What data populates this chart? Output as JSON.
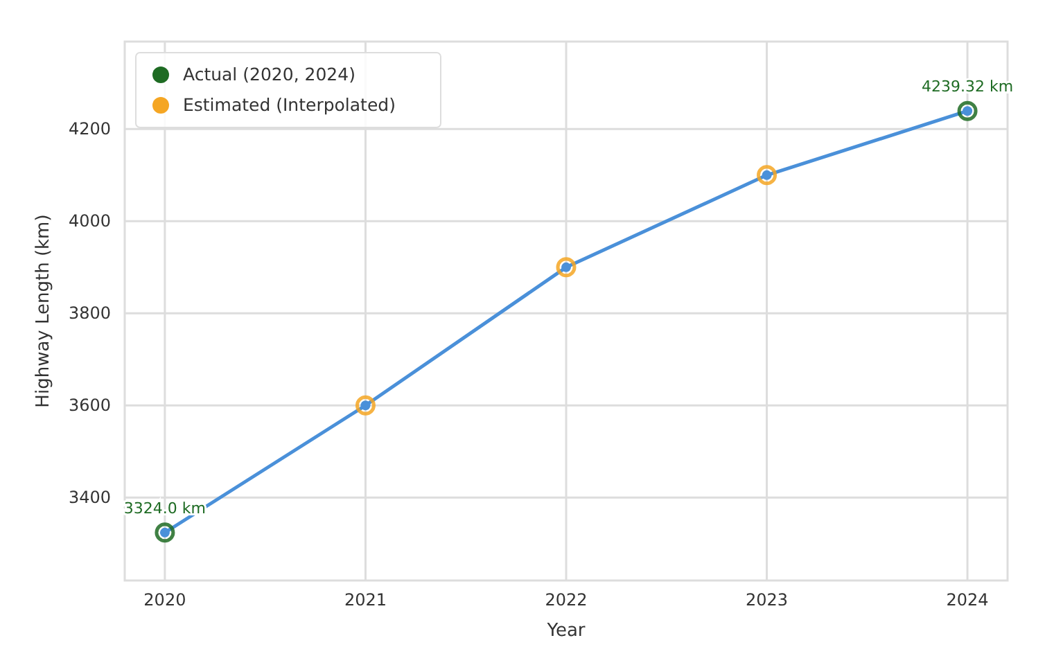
{
  "chart_data": {
    "type": "line",
    "xlabel": "Year",
    "ylabel": "Highway Length (km)",
    "x": [
      2020,
      2021,
      2022,
      2023,
      2024
    ],
    "xlim": [
      2019.8,
      2024.2
    ],
    "xticks": [
      2020,
      2021,
      2022,
      2023,
      2024
    ],
    "ylim": [
      3220,
      4390
    ],
    "yticks": [
      3400,
      3600,
      3800,
      4000,
      4200
    ],
    "grid": true,
    "legend": "top left",
    "series": [
      {
        "color": "#4a90d9",
        "values": [
          3324.0,
          3600,
          3900,
          4100,
          4239.32
        ],
        "marker": "circle",
        "line_style": "solid"
      },
      {
        "type": "scatter",
        "name": "Actual (2020, 2024)",
        "color": "#1e6b23",
        "x": [
          2020,
          2024
        ],
        "values": [
          3324.0,
          4239.32
        ],
        "value_labels": [
          "3324.0 km",
          "4239.32 km"
        ]
      },
      {
        "type": "scatter",
        "name": "Estimated (Interpolated)",
        "color": "#f5a623",
        "x": [
          2021,
          2022,
          2023
        ],
        "values": [
          3600,
          3900,
          4100
        ]
      }
    ]
  }
}
